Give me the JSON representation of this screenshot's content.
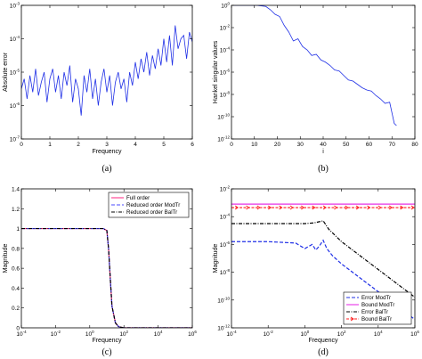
{
  "chart_data": [
    {
      "id": "a",
      "type": "line",
      "caption": "(a)",
      "xlabel": "Frequency",
      "ylabel": "Absolute error",
      "xlim": [
        0,
        6
      ],
      "ylim_log10": [
        -7,
        -3
      ],
      "yscale": "log",
      "grid": false,
      "xticks": [
        0,
        1,
        2,
        3,
        4,
        5,
        6
      ],
      "yticks_exp": [
        -7,
        -6,
        -5,
        -4,
        -3
      ],
      "series": [
        {
          "color": "#1f2fe6",
          "x": [
            0,
            0.1,
            0.2,
            0.3,
            0.4,
            0.5,
            0.6,
            0.7,
            0.8,
            0.9,
            1.0,
            1.1,
            1.2,
            1.3,
            1.4,
            1.5,
            1.6,
            1.7,
            1.8,
            1.9,
            2.0,
            2.1,
            2.2,
            2.3,
            2.4,
            2.5,
            2.6,
            2.7,
            2.8,
            2.9,
            3.0,
            3.1,
            3.2,
            3.3,
            3.4,
            3.5,
            3.6,
            3.7,
            3.8,
            3.9,
            4.0,
            4.1,
            4.2,
            4.3,
            4.4,
            4.5,
            4.6,
            4.7,
            4.8,
            4.9,
            5.0,
            5.1,
            5.2,
            5.3,
            5.4,
            5.5,
            5.6,
            5.7,
            5.8,
            5.9,
            6.0
          ],
          "log10_y": [
            -5.5,
            -5.2,
            -5.8,
            -5.1,
            -5.6,
            -4.9,
            -5.7,
            -5.3,
            -5.0,
            -5.9,
            -5.2,
            -4.9,
            -5.6,
            -5.1,
            -5.8,
            -5.0,
            -5.4,
            -4.8,
            -5.9,
            -5.2,
            -5.5,
            -6.3,
            -5.1,
            -5.6,
            -4.9,
            -5.8,
            -5.2,
            -6.0,
            -5.3,
            -4.9,
            -5.6,
            -5.1,
            -6.0,
            -5.3,
            -5.0,
            -5.5,
            -5.2,
            -5.9,
            -5.0,
            -5.4,
            -4.7,
            -5.2,
            -4.6,
            -5.0,
            -4.4,
            -5.1,
            -4.5,
            -4.9,
            -4.3,
            -4.8,
            -4.0,
            -4.7,
            -3.9,
            -4.8,
            -3.6,
            -4.3,
            -4.0,
            -3.9,
            -4.6,
            -3.8,
            -4.1
          ]
        }
      ]
    },
    {
      "id": "b",
      "type": "line",
      "caption": "(b)",
      "xlabel": "i",
      "ylabel": "Hankel singular values",
      "xlim": [
        0,
        80
      ],
      "ylim_log10": [
        -12,
        0
      ],
      "yscale": "log",
      "grid": false,
      "xticks": [
        0,
        10,
        20,
        30,
        40,
        50,
        60,
        70,
        80
      ],
      "yticks_exp": [
        -12,
        -10,
        -8,
        -6,
        -4,
        -2,
        0
      ],
      "series": [
        {
          "color": "#1f2fe6",
          "x": [
            1,
            3,
            5,
            7,
            9,
            11,
            13,
            15,
            17,
            19,
            21,
            23,
            25,
            27,
            29,
            31,
            33,
            35,
            37,
            39,
            41,
            43,
            45,
            47,
            49,
            51,
            53,
            55,
            57,
            59,
            61,
            63,
            65,
            67,
            69,
            71,
            72
          ],
          "log10_y": [
            0,
            0,
            0,
            0,
            0,
            0,
            -0.05,
            -0.1,
            -0.4,
            -0.8,
            -1.0,
            -1.8,
            -2.4,
            -3.2,
            -3.0,
            -3.7,
            -4.0,
            -4.5,
            -4.4,
            -4.9,
            -5.1,
            -5.4,
            -5.8,
            -5.9,
            -6.3,
            -6.7,
            -6.8,
            -7.1,
            -7.4,
            -7.6,
            -7.7,
            -8.1,
            -8.4,
            -8.8,
            -8.7,
            -10.6,
            -10.8
          ]
        }
      ]
    },
    {
      "id": "c",
      "type": "line",
      "caption": "(c)",
      "xlabel": "Frequency",
      "ylabel": "Magnitude",
      "xscale": "log",
      "xlim_log10": [
        -4,
        6
      ],
      "ylim": [
        0,
        1.4
      ],
      "grid": false,
      "xticks_exp": [
        -4,
        -2,
        0,
        2,
        4,
        6
      ],
      "yticks": [
        0,
        0.2,
        0.4,
        0.6,
        0.8,
        1,
        1.2,
        1.4
      ],
      "legend": {
        "placement": "top-right",
        "entries": [
          "Full order",
          "Reduced order ModTr",
          "Reduced order BalTr"
        ]
      },
      "series": [
        {
          "name": "Full order",
          "color": "#ff3a8c",
          "dash": "",
          "log10_x": [
            -4,
            0,
            0.8,
            1.0,
            1.1,
            1.2,
            1.3,
            1.5,
            1.7,
            2,
            4,
            6
          ],
          "y": [
            1,
            1,
            1,
            0.98,
            0.8,
            0.5,
            0.22,
            0.05,
            0.01,
            0,
            0,
            0
          ]
        },
        {
          "name": "Reduced order ModTr",
          "color": "#4a4aff",
          "dash": "4,2",
          "log10_x": [
            -4,
            0,
            0.8,
            1.0,
            1.1,
            1.2,
            1.3,
            1.5,
            1.7,
            2,
            4,
            6
          ],
          "y": [
            1,
            1,
            1,
            0.98,
            0.8,
            0.5,
            0.22,
            0.05,
            0.01,
            0,
            0,
            0
          ]
        },
        {
          "name": "Reduced order BalTr",
          "color": "#000000",
          "dash": "4,1.5,1,1.5",
          "log10_x": [
            -4,
            0,
            0.8,
            1.0,
            1.1,
            1.2,
            1.3,
            1.5,
            1.7,
            2,
            4,
            6
          ],
          "y": [
            1,
            1,
            1,
            0.98,
            0.8,
            0.5,
            0.22,
            0.05,
            0.01,
            0,
            0,
            0
          ]
        }
      ]
    },
    {
      "id": "d",
      "type": "line",
      "caption": "(d)",
      "xlabel": "Frequency",
      "ylabel": "Magnitude",
      "xscale": "log",
      "yscale": "log",
      "xlim_log10": [
        -4,
        6
      ],
      "ylim_log10": [
        -12,
        -2
      ],
      "grid": false,
      "xticks_exp": [
        -4,
        -2,
        0,
        2,
        4,
        6
      ],
      "yticks_exp": [
        -12,
        -10,
        -8,
        -6,
        -4,
        -2
      ],
      "legend": {
        "placement": "bottom-right",
        "entries": [
          "Error ModTr",
          "Bound ModTr",
          "Error BalTr",
          "Bound BalTr"
        ]
      },
      "series": [
        {
          "name": "Error ModTr",
          "color": "#1f2fe6",
          "dash": "4,2",
          "log10_x": [
            -4,
            -2,
            -0.5,
            0,
            0.4,
            0.6,
            0.8,
            1.0,
            1.2,
            1.5,
            2,
            4,
            6
          ],
          "log10_y": [
            -5.8,
            -5.8,
            -5.9,
            -6.3,
            -6.0,
            -6.4,
            -6.1,
            -5.7,
            -6.3,
            -6.8,
            -7.4,
            -9.4,
            -11.4
          ]
        },
        {
          "name": "Bound ModTr",
          "color": "#e632e6",
          "dash": "",
          "log10_x": [
            -4,
            6
          ],
          "log10_y": [
            -3.1,
            -3.1
          ]
        },
        {
          "name": "Error BalTr",
          "color": "#000000",
          "dash": "4,1.5,1,1.5",
          "log10_x": [
            -4,
            -2,
            0,
            0.5,
            1.0,
            1.3,
            2,
            4,
            6
          ],
          "log10_y": [
            -4.5,
            -4.5,
            -4.5,
            -4.45,
            -4.3,
            -4.9,
            -5.8,
            -7.8,
            -9.8
          ]
        },
        {
          "name": "Bound BalTr",
          "color": "#ff1e1e",
          "dash": "3,1.5",
          "marker": "arrow",
          "log10_x": [
            -4,
            6
          ],
          "log10_y": [
            -3.35,
            -3.35
          ]
        }
      ]
    }
  ]
}
